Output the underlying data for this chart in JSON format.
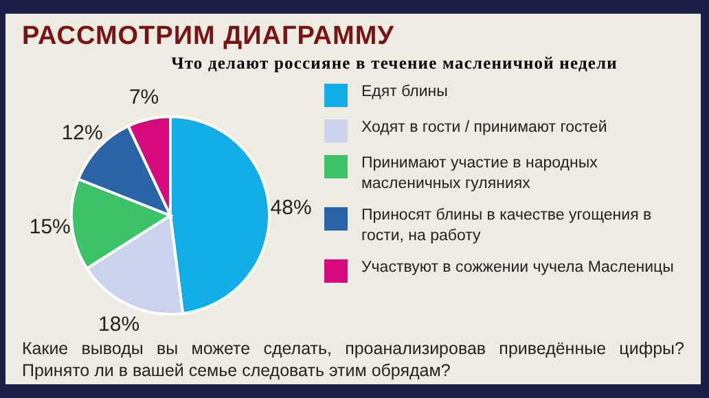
{
  "chart_data": {
    "type": "pie",
    "title": "РАССМОТРИМ ДИАГРАММУ",
    "subtitle": "Что делают россияне в течение масленичной недели",
    "categories": [
      "Едят блины",
      "Ходят в гости / принимают гостей",
      "Принимают участие в народных масленичных гуляниях",
      "Приносят блины в качестве угощения в гости, на работу",
      "Участвуют в сожжении чучела Масленицы"
    ],
    "values": [
      48,
      18,
      15,
      12,
      7
    ],
    "colors": [
      "#12ade6",
      "#cbd2eb",
      "#3dc367",
      "#2a64a6",
      "#d6097d"
    ],
    "value_labels": [
      "48%",
      "18%",
      "15%",
      "12%",
      "7%"
    ],
    "legend": "right",
    "annotations": [
      "Какие выводы вы можете сделать, проанализировав приведённые цифры? Принято ли в вашей семье следовать этим обрядам?"
    ]
  }
}
